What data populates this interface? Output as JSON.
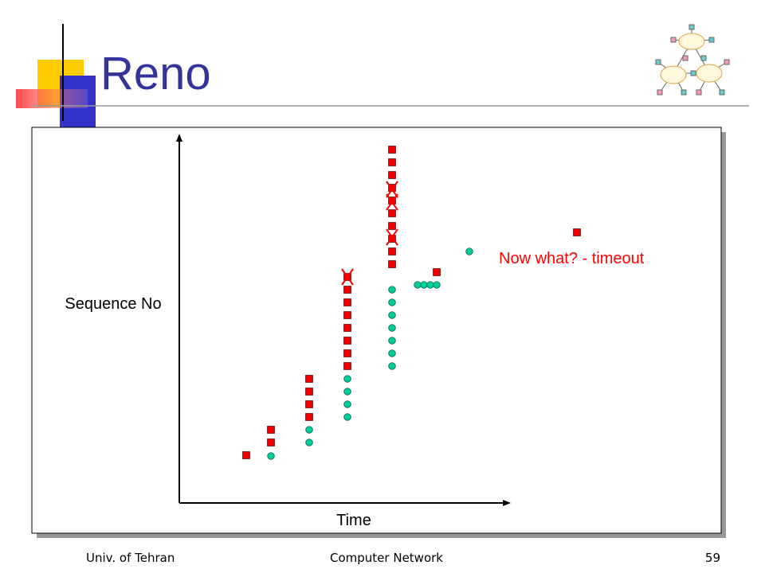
{
  "title": "Reno",
  "diagram": {
    "y_axis_label": "Sequence No",
    "x_axis_label": "Time",
    "annotation": "Now what? - timeout"
  },
  "footer": {
    "left": "Univ. of Tehran",
    "center": "Computer Network",
    "right": "59"
  }
}
